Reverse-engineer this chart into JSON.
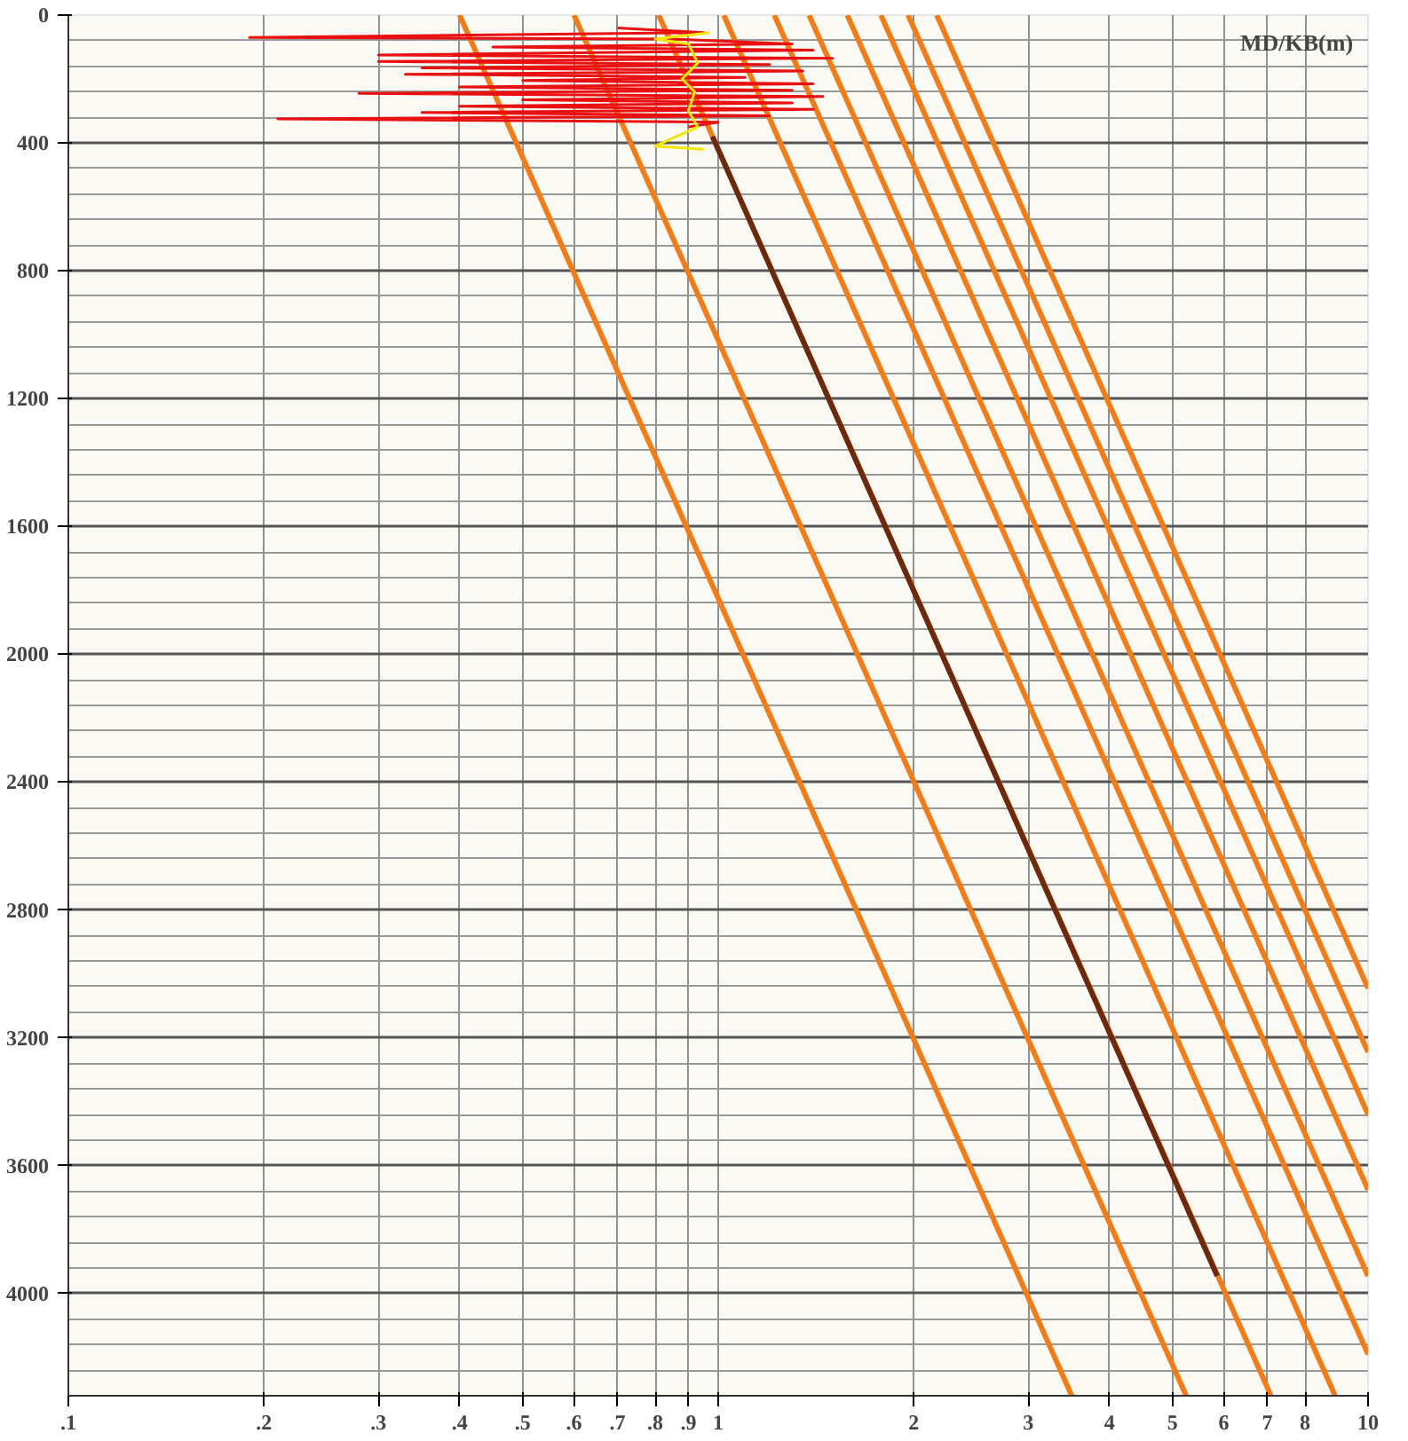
{
  "chart_data": {
    "type": "line",
    "ylabel": "MD/KB(m)",
    "log": "x",
    "grid": true,
    "marker": "none",
    "line_style": "solid",
    "xlim": [
      0.1,
      10
    ],
    "ylim": [
      4320,
      0
    ],
    "xticks": [
      {
        "value": 0.1,
        "label": ".1"
      },
      {
        "value": 0.2,
        "label": ".2"
      },
      {
        "value": 0.3,
        "label": ".3"
      },
      {
        "value": 0.4,
        "label": ".4"
      },
      {
        "value": 0.5,
        "label": ".5"
      },
      {
        "value": 0.6,
        "label": ".6"
      },
      {
        "value": 0.7,
        "label": ".7"
      },
      {
        "value": 0.8,
        "label": ".8"
      },
      {
        "value": 0.9,
        "label": ".9"
      },
      1,
      2,
      3,
      4,
      5,
      6,
      7,
      8,
      10
    ],
    "yticks": [
      0,
      400,
      800,
      1200,
      1600,
      2000,
      2400,
      2800,
      3200,
      3600,
      4000
    ],
    "series": [
      {
        "color": "#f07d1a",
        "x": [
          0.4,
          3.5
        ],
        "values": [
          0,
          4320
        ]
      },
      {
        "color": "#f07d1a",
        "x": [
          0.6,
          5.25
        ],
        "values": [
          0,
          4320
        ]
      },
      {
        "color": "#f07d1a",
        "x": [
          0.81,
          7.09
        ],
        "values": [
          0,
          4320
        ]
      },
      {
        "color": "#f07d1a",
        "x": [
          1.02,
          8.9
        ],
        "values": [
          0,
          4320
        ]
      },
      {
        "color": "#f07d1a",
        "x": [
          1.22,
          10
        ],
        "values": [
          0,
          4190
        ]
      },
      {
        "color": "#f07d1a",
        "x": [
          1.38,
          10
        ],
        "values": [
          0,
          3945
        ]
      },
      {
        "color": "#f07d1a",
        "x": [
          1.58,
          10
        ],
        "values": [
          0,
          3675
        ]
      },
      {
        "color": "#f07d1a",
        "x": [
          1.78,
          10
        ],
        "values": [
          0,
          3440
        ]
      },
      {
        "color": "#f07d1a",
        "x": [
          1.96,
          10
        ],
        "values": [
          0,
          3245
        ]
      },
      {
        "color": "#f07d1a",
        "x": [
          2.17,
          10
        ],
        "values": [
          0,
          3045
        ]
      },
      {
        "color": "#6b2a10",
        "x": [
          0.98,
          5.86
        ],
        "values": [
          380,
          3945
        ]
      },
      {
        "color": "#e81010",
        "x": [
          0.7,
          0.95,
          0.19,
          0.85,
          1.3,
          0.45,
          1.4,
          0.3,
          1.5,
          0.3,
          1.2,
          0.35,
          1.35,
          0.33,
          1.1,
          0.5,
          1.4,
          0.4,
          1.3,
          0.28,
          1.45,
          0.5,
          1.3,
          0.4,
          1.4,
          0.35,
          1.2,
          0.21,
          1.0,
          0.9
        ],
        "values": [
          40,
          55,
          70,
          75,
          90,
          100,
          110,
          125,
          135,
          145,
          155,
          165,
          175,
          185,
          195,
          205,
          215,
          225,
          235,
          245,
          255,
          265,
          275,
          285,
          295,
          305,
          315,
          325,
          335,
          350
        ]
      },
      {
        "color": "#f2e600",
        "x": [
          0.97,
          0.8,
          0.9,
          0.93,
          0.88,
          0.92,
          0.9,
          0.93,
          0.8,
          0.95
        ],
        "values": [
          55,
          75,
          90,
          150,
          200,
          240,
          300,
          350,
          410,
          420
        ]
      }
    ]
  }
}
